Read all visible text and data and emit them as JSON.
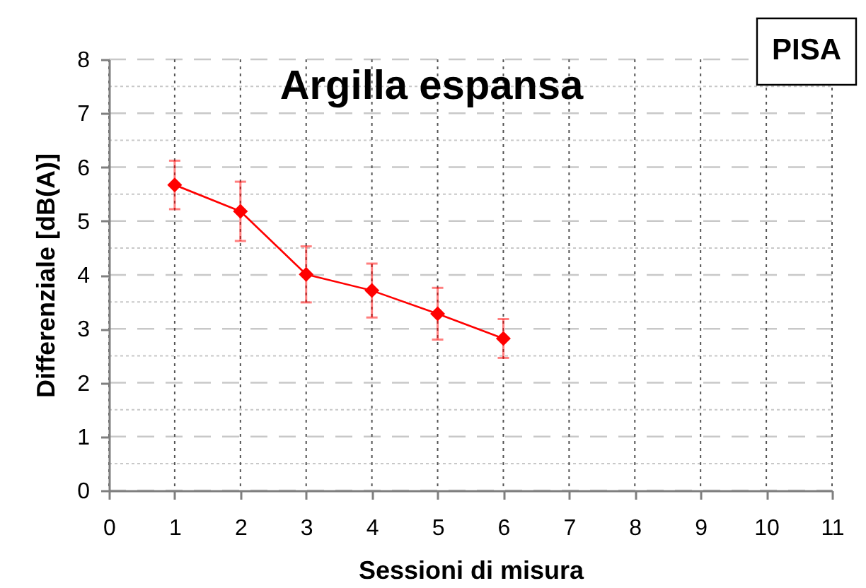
{
  "chart_data": {
    "type": "line",
    "title": "Argilla espansa",
    "xlabel": "Sessioni di misura",
    "ylabel": "Differenziale [dB(A)]",
    "annotations": [
      "PISA"
    ],
    "x": [
      1,
      2,
      3,
      4,
      5,
      6
    ],
    "series": [
      {
        "color": "#ff0000",
        "values": [
          5.67,
          5.18,
          4.01,
          3.71,
          3.28,
          2.82
        ],
        "errors": [
          0.45,
          0.55,
          0.52,
          0.5,
          0.48,
          0.36
        ]
      }
    ],
    "xlim": [
      0,
      11
    ],
    "ylim": [
      0,
      8
    ],
    "xticks": [
      0,
      1,
      2,
      3,
      4,
      5,
      6,
      7,
      8,
      9,
      10,
      11
    ],
    "yticks": [
      0,
      {
        "value": 0.5,
        "label": null
      },
      1,
      {
        "value": 1.5,
        "label": null
      },
      2,
      {
        "value": 2.5,
        "label": null
      },
      3,
      {
        "value": 3.5,
        "label": null
      },
      4,
      {
        "value": 4.5,
        "label": null
      },
      5,
      {
        "value": 5.5,
        "label": null
      },
      6,
      {
        "value": 6.5,
        "label": null
      },
      7,
      {
        "value": 7.5,
        "label": null
      },
      8
    ],
    "grid": true,
    "marker": "diamond",
    "line_style": "solid"
  }
}
